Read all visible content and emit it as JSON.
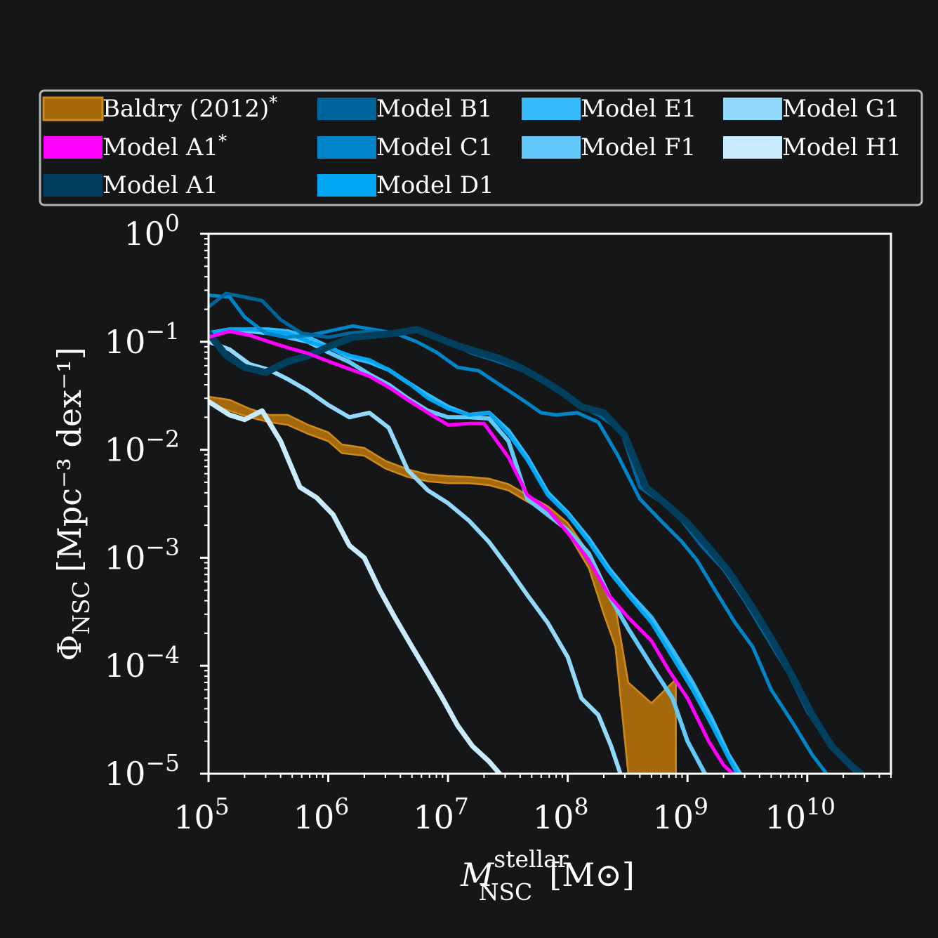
{
  "chart_data": {
    "type": "line",
    "title": "",
    "xlabel": {
      "main": "M",
      "sup": "stellar",
      "sub": "NSC",
      "unit": "[M⊙]"
    },
    "ylabel": {
      "main": "Φ",
      "sub": "NSC",
      "unit": "[Mpc⁻³ dex⁻¹]"
    },
    "x_scale": "log",
    "y_scale": "log",
    "xlim": [
      100000,
      50000000000
    ],
    "ylim": [
      1e-05,
      1
    ],
    "x_ticks": [
      {
        "value": 100000,
        "base": "10",
        "exp": "5"
      },
      {
        "value": 1000000,
        "base": "10",
        "exp": "6"
      },
      {
        "value": 10000000,
        "base": "10",
        "exp": "7"
      },
      {
        "value": 100000000,
        "base": "10",
        "exp": "8"
      },
      {
        "value": 1000000000,
        "base": "10",
        "exp": "9"
      },
      {
        "value": 10000000000,
        "base": "10",
        "exp": "10"
      }
    ],
    "y_ticks": [
      {
        "value": 1,
        "base": "10",
        "exp": "0"
      },
      {
        "value": 0.1,
        "base": "10",
        "exp": "−1"
      },
      {
        "value": 0.01,
        "base": "10",
        "exp": "−2"
      },
      {
        "value": 0.001,
        "base": "10",
        "exp": "−3"
      },
      {
        "value": 0.0001,
        "base": "10",
        "exp": "−4"
      },
      {
        "value": 1e-05,
        "base": "10",
        "exp": "−5"
      }
    ],
    "grid": false,
    "legend": {
      "placement": "top",
      "columns": 4
    },
    "band": {
      "name": "Baldry (2012)*",
      "color": "#a4690c",
      "edge_color": "#d08a1c",
      "x": [
        100000.0,
        150000.0,
        220000.0,
        320000.0,
        460000.0,
        680000.0,
        1000000.0,
        1300000.0,
        2000000.0,
        3000000.0,
        4600000.0,
        6800000.0,
        10000000.0,
        15000000.0,
        22000000.0,
        32000000.0,
        46000000.0,
        68000000.0,
        100000000.0,
        150000000.0,
        200000000.0,
        250000000.0,
        320000000.0,
        500000000.0,
        800000000.0
      ],
      "upper": [
        0.031,
        0.029,
        0.024,
        0.021,
        0.021,
        0.017,
        0.0145,
        0.0112,
        0.0104,
        0.0079,
        0.0066,
        0.0059,
        0.0057,
        0.0056,
        0.0054,
        0.0048,
        0.0038,
        0.003,
        0.0021,
        0.0011,
        0.00055,
        0.00035,
        7e-05,
        4.5e-05,
        7.5e-05
      ],
      "lower": [
        0.027,
        0.023,
        0.02,
        0.018,
        0.017,
        0.014,
        0.012,
        0.0093,
        0.0088,
        0.0067,
        0.0056,
        0.0051,
        0.0049,
        0.0049,
        0.0047,
        0.0042,
        0.0033,
        0.0026,
        0.0017,
        0.0008,
        0.0003,
        0.00015,
        1e-05,
        1e-05,
        1e-05
      ]
    },
    "series": [
      {
        "name": "Model A1*",
        "color": "#ff00ff",
        "width": 5,
        "x": [
          100000.0,
          150000.0,
          220000.0,
          320000.0,
          460000.0,
          680000.0,
          1000000.0,
          1500000.0,
          2200000.0,
          3200000.0,
          4600000.0,
          6800000.0,
          10000000.0,
          15000000.0,
          20000000.0,
          32000000.0,
          46000000.0,
          68000000.0,
          100000000.0,
          150000000.0,
          220000000.0,
          320000000.0,
          500000000.0,
          700000000.0,
          1000000000.0,
          1500000000.0,
          2000000000.0,
          2400000000.0
        ],
        "y": [
          0.11,
          0.125,
          0.115,
          0.1,
          0.088,
          0.078,
          0.066,
          0.056,
          0.048,
          0.038,
          0.029,
          0.022,
          0.017,
          0.0175,
          0.0175,
          0.0085,
          0.0038,
          0.0028,
          0.0017,
          0.00095,
          0.00045,
          0.00028,
          0.00017,
          9e-05,
          5e-05,
          2e-05,
          1.2e-05,
          1e-05
        ]
      },
      {
        "name": "Model A1",
        "color": "#003f5e",
        "width": 10,
        "x": [
          100000.0,
          140000.0,
          200000.0,
          300000.0,
          450000.0,
          700000.0,
          1000000.0,
          1600000.0,
          2400000.0,
          3600000.0,
          5500000.0,
          8000000.0,
          12000000.0,
          18000000.0,
          27000000.0,
          40000000.0,
          60000000.0,
          90000000.0,
          130000000.0,
          200000000.0,
          300000000.0,
          450000000.0,
          650000000.0,
          1000000000.0,
          1500000000.0,
          2200000000.0,
          3300000000.0,
          5000000000.0,
          7500000000.0,
          11000000000.0,
          16000000000.0,
          23000000000.0,
          28000000000.0
        ],
        "y": [
          0.12,
          0.075,
          0.058,
          0.052,
          0.065,
          0.075,
          0.09,
          0.11,
          0.115,
          0.12,
          0.13,
          0.11,
          0.092,
          0.08,
          0.07,
          0.058,
          0.045,
          0.034,
          0.025,
          0.022,
          0.0135,
          0.0045,
          0.0032,
          0.0021,
          0.00125,
          0.00075,
          0.00038,
          0.00018,
          8e-05,
          3.5e-05,
          1.8e-05,
          1.2e-05,
          1e-05
        ]
      },
      {
        "name": "Model B1",
        "color": "#00659b",
        "width": 5,
        "x": [
          100000.0,
          140000.0,
          200000.0,
          280000.0,
          400000.0,
          600000.0,
          1000000.0,
          1500000.0,
          2200000.0,
          3300000.0,
          5000000.0,
          7500000.0,
          11000000.0,
          16000000.0,
          24000000.0,
          36000000.0,
          54000000.0,
          80000000.0,
          120000000.0,
          180000000.0,
          280000000.0,
          400000000.0,
          600000000.0,
          900000000.0,
          1300000000.0,
          2000000000.0,
          3000000000.0,
          4500000000.0,
          7000000000.0,
          10000000000.0,
          15000000000.0,
          22000000000.0,
          26000000000.0
        ],
        "y": [
          0.21,
          0.28,
          0.26,
          0.24,
          0.16,
          0.12,
          0.11,
          0.12,
          0.125,
          0.12,
          0.13,
          0.11,
          0.095,
          0.078,
          0.068,
          0.058,
          0.048,
          0.038,
          0.026,
          0.021,
          0.015,
          0.0045,
          0.0033,
          0.0022,
          0.0013,
          0.00078,
          0.0004,
          0.00019,
          8.5e-05,
          3.8e-05,
          1.9e-05,
          1.2e-05,
          1e-05
        ]
      },
      {
        "name": "Model C1",
        "color": "#0085c8",
        "width": 5,
        "x": [
          100000.0,
          150000.0,
          200000.0,
          300000.0,
          450000.0,
          700000.0,
          1000000.0,
          1600000.0,
          2400000.0,
          3600000.0,
          5500000.0,
          8000000.0,
          12000000.0,
          18000000.0,
          27000000.0,
          40000000.0,
          60000000.0,
          80000000.0,
          120000000.0,
          180000000.0,
          260000000.0,
          400000000.0,
          600000000.0,
          900000000.0,
          1200000000.0,
          1800000000.0,
          2500000000.0,
          3500000000.0,
          5000000000.0,
          7500000000.0,
          11000000000.0,
          14500000000.0
        ],
        "y": [
          0.27,
          0.26,
          0.17,
          0.12,
          0.11,
          0.115,
          0.125,
          0.14,
          0.13,
          0.12,
          0.1,
          0.08,
          0.058,
          0.054,
          0.04,
          0.03,
          0.022,
          0.021,
          0.022,
          0.018,
          0.009,
          0.0035,
          0.0022,
          0.0014,
          0.00095,
          0.00045,
          0.00025,
          0.00015,
          6e-05,
          3e-05,
          1.5e-05,
          1e-05
        ]
      },
      {
        "name": "Model D1",
        "color": "#00a6f4",
        "width": 5,
        "x": [
          100000.0,
          150000.0,
          220000.0,
          320000.0,
          460000.0,
          680000.0,
          1000000.0,
          1500000.0,
          2200000.0,
          3200000.0,
          4600000.0,
          6800000.0,
          10000000.0,
          15000000.0,
          22000000.0,
          32000000.0,
          46000000.0,
          68000000.0,
          100000000.0,
          150000000.0,
          220000000.0,
          320000000.0,
          500000000.0,
          750000000.0,
          1100000000.0,
          1600000000.0,
          2200000000.0,
          2600000000.0
        ],
        "y": [
          0.12,
          0.13,
          0.13,
          0.125,
          0.12,
          0.1,
          0.088,
          0.075,
          0.068,
          0.055,
          0.042,
          0.03,
          0.024,
          0.021,
          0.022,
          0.014,
          0.008,
          0.0038,
          0.0025,
          0.0014,
          0.00075,
          0.00045,
          0.00025,
          0.00012,
          6e-05,
          2.8e-05,
          1.4e-05,
          1e-05
        ]
      },
      {
        "name": "Model E1",
        "color": "#36baf9",
        "width": 6,
        "x": [
          100000.0,
          150000.0,
          220000.0,
          320000.0,
          460000.0,
          680000.0,
          1000000.0,
          1500000.0,
          2200000.0,
          3200000.0,
          4600000.0,
          6800000.0,
          10000000.0,
          15000000.0,
          22000000.0,
          32000000.0,
          46000000.0,
          68000000.0,
          100000000.0,
          150000000.0,
          220000000.0,
          320000000.0,
          500000000.0,
          750000000.0,
          1100000000.0,
          1600000000.0,
          2200000000.0,
          2750000000.0
        ],
        "y": [
          0.12,
          0.13,
          0.13,
          0.13,
          0.125,
          0.11,
          0.09,
          0.072,
          0.065,
          0.055,
          0.042,
          0.032,
          0.025,
          0.021,
          0.022,
          0.015,
          0.0085,
          0.004,
          0.0026,
          0.0015,
          0.0008,
          0.00048,
          0.00028,
          0.00014,
          7e-05,
          3.2e-05,
          1.5e-05,
          1e-05
        ]
      },
      {
        "name": "Model F1",
        "color": "#63c9fb",
        "width": 6,
        "x": [
          100000.0,
          150000.0,
          220000.0,
          320000.0,
          460000.0,
          680000.0,
          1000000.0,
          1500000.0,
          2200000.0,
          3200000.0,
          4600000.0,
          6800000.0,
          10000000.0,
          15000000.0,
          22000000.0,
          32000000.0,
          46000000.0,
          68000000.0,
          100000000.0,
          150000000.0,
          220000000.0,
          320000000.0,
          500000000.0,
          750000000.0,
          1000000000.0,
          1400000000.0
        ],
        "y": [
          0.12,
          0.13,
          0.125,
          0.12,
          0.11,
          0.1,
          0.08,
          0.065,
          0.05,
          0.04,
          0.03,
          0.023,
          0.02,
          0.02,
          0.0195,
          0.012,
          0.0035,
          0.0025,
          0.0018,
          0.0011,
          0.00045,
          0.00022,
          0.0001,
          5e-05,
          2e-05,
          1e-05
        ]
      },
      {
        "name": "Model G1",
        "color": "#92d9fc",
        "width": 6,
        "x": [
          100000.0,
          150000.0,
          220000.0,
          320000.0,
          460000.0,
          680000.0,
          1000000.0,
          1500000.0,
          2200000.0,
          3200000.0,
          4600000.0,
          6800000.0,
          10000000.0,
          15000000.0,
          22000000.0,
          32000000.0,
          46000000.0,
          68000000.0,
          100000000.0,
          130000000.0,
          180000000.0,
          230000000.0,
          275000000.0
        ],
        "y": [
          0.1,
          0.085,
          0.062,
          0.055,
          0.045,
          0.035,
          0.026,
          0.02,
          0.022,
          0.016,
          0.0065,
          0.0042,
          0.0032,
          0.0022,
          0.0014,
          0.0008,
          0.00045,
          0.00025,
          0.00012,
          5e-05,
          3.5e-05,
          1.8e-05,
          1e-05
        ]
      },
      {
        "name": "Model H1",
        "color": "#c8ebfd",
        "width": 7,
        "x": [
          100000.0,
          150000.0,
          200000.0,
          280000.0,
          400000.0,
          580000.0,
          800000.0,
          1100000.0,
          1500000.0,
          2000000.0,
          2700000.0,
          3600000.0,
          5000000.0,
          6800000.0,
          9000000.0,
          12000000.0,
          16000000.0,
          22000000.0,
          27000000.0
        ],
        "y": [
          0.028,
          0.021,
          0.019,
          0.023,
          0.012,
          0.0045,
          0.0036,
          0.0025,
          0.0013,
          0.001,
          0.0005,
          0.00028,
          0.00015,
          8.5e-05,
          5e-05,
          2.8e-05,
          1.8e-05,
          1.3e-05,
          1e-05
        ]
      }
    ]
  },
  "legend_items": [
    {
      "label": "Baldry (2012)*",
      "name": "Baldry (2012)",
      "star": "*",
      "color": "#a4690c",
      "edge": "#d08a1c",
      "col": 0,
      "row": 0
    },
    {
      "label": "Model A1*",
      "name": "Model A1",
      "star": "*",
      "color": "#ff00ff",
      "col": 0,
      "row": 1
    },
    {
      "label": "Model A1",
      "name": "Model A1",
      "star": "",
      "color": "#003f5e",
      "col": 0,
      "row": 2
    },
    {
      "label": "Model B1",
      "name": "Model B1",
      "star": "",
      "color": "#00659b",
      "col": 1,
      "row": 0
    },
    {
      "label": "Model C1",
      "name": "Model C1",
      "star": "",
      "color": "#0085c8",
      "col": 1,
      "row": 1
    },
    {
      "label": "Model D1",
      "name": "Model D1",
      "star": "",
      "color": "#00a6f4",
      "col": 1,
      "row": 2
    },
    {
      "label": "Model E1",
      "name": "Model E1",
      "star": "",
      "color": "#36baf9",
      "col": 2,
      "row": 0
    },
    {
      "label": "Model F1",
      "name": "Model F1",
      "star": "",
      "color": "#63c9fb",
      "col": 2,
      "row": 1
    },
    {
      "label": "Model G1",
      "name": "Model G1",
      "star": "",
      "color": "#92d9fc",
      "col": 3,
      "row": 0
    },
    {
      "label": "Model H1",
      "name": "Model H1",
      "star": "",
      "color": "#c8ebfd",
      "col": 3,
      "row": 1
    }
  ],
  "colors": {
    "background": "#141618",
    "axes": "#ffffff",
    "legend_frame": "#b4b4b4"
  }
}
